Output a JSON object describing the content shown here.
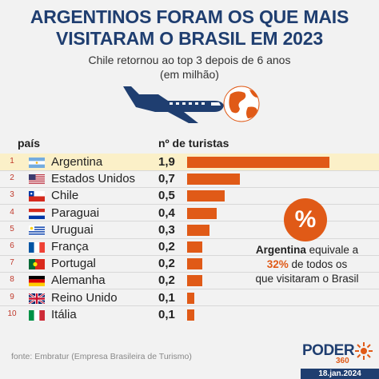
{
  "title_line1": "ARGENTINOS FORAM OS QUE MAIS",
  "title_line2": "VISITARAM O BRASIL EM 2023",
  "subtitle_line1": "Chile retornou ao top 3 depois de 6 anos",
  "subtitle_line2": "(em milhão)",
  "headers": {
    "country": "país",
    "tourists": "nº de turistas"
  },
  "colors": {
    "bar": "#e05a17",
    "title": "#1f3e70",
    "highlight": "#fbf0c8",
    "plane": "#1f3e70",
    "globe": "#e05a17"
  },
  "chart_data": {
    "type": "bar",
    "orientation": "horizontal",
    "categories": [
      "Argentina",
      "Estados Unidos",
      "Chile",
      "Paraguai",
      "Uruguai",
      "França",
      "Portugal",
      "Alemanha",
      "Reino Unido",
      "Itália"
    ],
    "values": [
      1.9,
      0.7,
      0.5,
      0.4,
      0.3,
      0.2,
      0.2,
      0.2,
      0.1,
      0.1
    ],
    "value_labels": [
      "1,9",
      "0,7",
      "0,5",
      "0,4",
      "0,3",
      "0,2",
      "0,2",
      "0,2",
      "0,1",
      "0,1"
    ],
    "ranks": [
      "1",
      "2",
      "3",
      "4",
      "5",
      "6",
      "7",
      "8",
      "9",
      "10"
    ],
    "flags": [
      "argentina-flag",
      "usa-flag",
      "chile-flag",
      "paraguay-flag",
      "uruguay-flag",
      "france-flag",
      "portugal-flag",
      "germany-flag",
      "uk-flag",
      "italy-flag"
    ],
    "highlighted": "Argentina",
    "xlim": [
      0,
      1.9
    ]
  },
  "callout": {
    "symbol": "%",
    "line1_bold": "Argentina",
    "line1_rest": " equivale a",
    "line2_pct": "32%",
    "line2_rest": " de todos os",
    "line3": "que visitaram o Brasil"
  },
  "source": "fonte: Embratur (Empresa Brasileira de Turismo)",
  "logo": {
    "word": "PODER",
    "number": "360"
  },
  "date": "18.jan.2024"
}
